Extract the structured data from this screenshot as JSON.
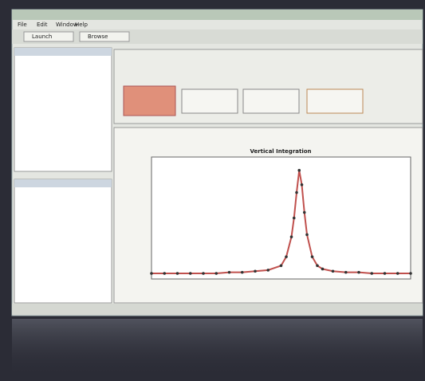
{
  "menu": [
    "File",
    "Edit",
    "Window",
    "Help"
  ],
  "tabs": [
    "Launch",
    "Browse"
  ],
  "chart_data": {
    "type": "line",
    "title": "Vertical Integration",
    "x": [
      0,
      5,
      10,
      15,
      20,
      25,
      30,
      35,
      40,
      45,
      50,
      52,
      54,
      55,
      56,
      57,
      58,
      59,
      60,
      62,
      64,
      66,
      70,
      75,
      80,
      85,
      90,
      95,
      100
    ],
    "series": [
      {
        "color": "#c0504d",
        "values": [
          0.05,
          0.05,
          0.05,
          0.05,
          0.05,
          0.05,
          0.06,
          0.06,
          0.07,
          0.08,
          0.12,
          0.2,
          0.38,
          0.55,
          0.78,
          0.98,
          0.85,
          0.6,
          0.4,
          0.2,
          0.12,
          0.09,
          0.07,
          0.06,
          0.06,
          0.05,
          0.05,
          0.05,
          0.05
        ]
      }
    ],
    "xlim": [
      0,
      100
    ],
    "ylim": [
      0,
      1.1
    ]
  }
}
